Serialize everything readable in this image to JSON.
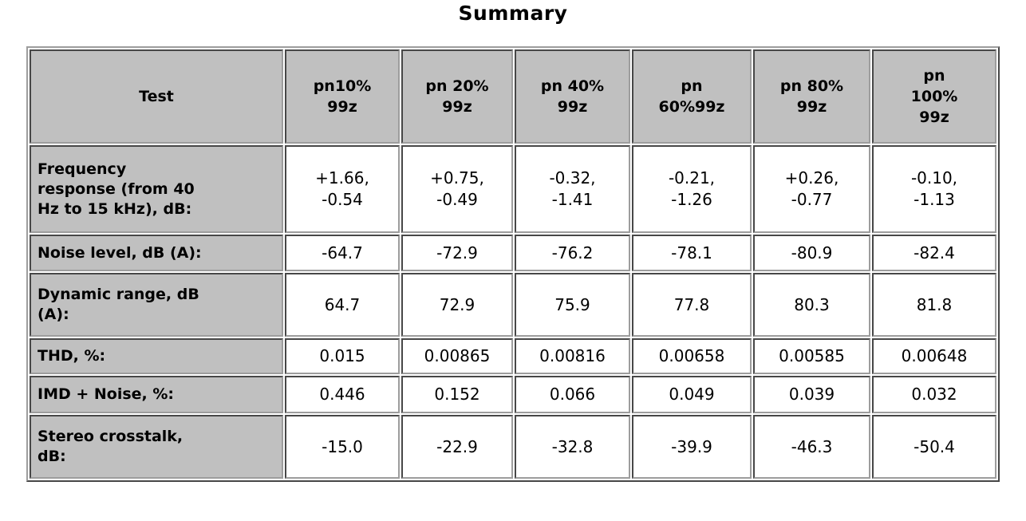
{
  "page": {
    "title": "Summary"
  },
  "colors": {
    "header_cell_bg": "#c0c0c0",
    "value_cell_bg": "#ffffff",
    "border_dark": "#474747",
    "border_light": "#9d9d9d",
    "text": "#000000",
    "page_bg": "#ffffff"
  },
  "chart_data": {
    "type": "table",
    "title": "Summary",
    "columns": [
      "Test",
      "pn10%\n99z",
      "pn 20%\n99z",
      "pn 40%\n99z",
      "pn\n60%99z",
      "pn 80%\n99z",
      "pn\n100%\n99z"
    ],
    "rows": [
      {
        "label": "Frequency\nresponse (from 40\nHz to 15 kHz), dB:",
        "values": [
          "+1.66,\n-0.54",
          "+0.75,\n-0.49",
          "-0.32,\n-1.41",
          "-0.21,\n-1.26",
          "+0.26,\n-0.77",
          "-0.10,\n-1.13"
        ]
      },
      {
        "label": "Noise level, dB (A):",
        "values": [
          "-64.7",
          "-72.9",
          "-76.2",
          "-78.1",
          "-80.9",
          "-82.4"
        ]
      },
      {
        "label": "Dynamic range, dB\n(A):",
        "values": [
          "64.7",
          "72.9",
          "75.9",
          "77.8",
          "80.3",
          "81.8"
        ]
      },
      {
        "label": "THD, %:",
        "values": [
          "0.015",
          "0.00865",
          "0.00816",
          "0.00658",
          "0.00585",
          "0.00648"
        ]
      },
      {
        "label": "IMD + Noise, %:",
        "values": [
          "0.446",
          "0.152",
          "0.066",
          "0.049",
          "0.039",
          "0.032"
        ]
      },
      {
        "label": "Stereo crosstalk,\ndB:",
        "values": [
          "-15.0",
          "-22.9",
          "-32.8",
          "-39.9",
          "-46.3",
          "-50.4"
        ]
      }
    ]
  }
}
